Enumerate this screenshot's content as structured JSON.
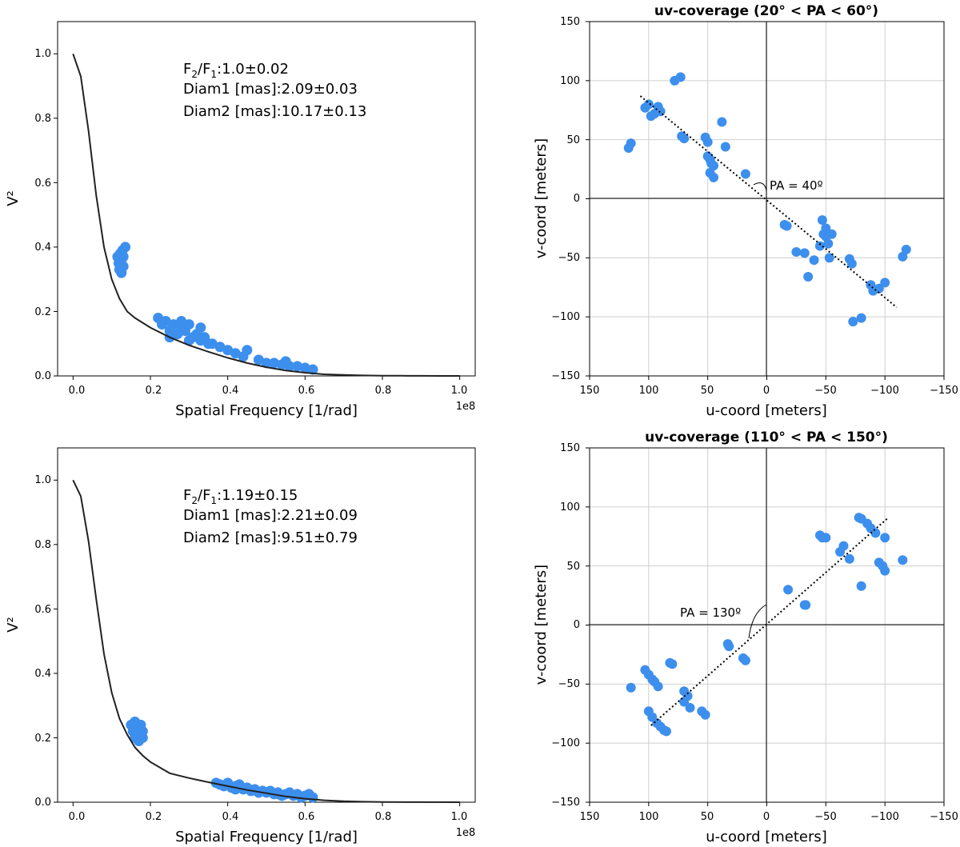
{
  "figure": {
    "marker_color": "#3d8fed",
    "curve_color": "#222222"
  },
  "chart_data": [
    {
      "type": "scatter",
      "id": "vis-top",
      "xlabel": "Spatial Frequency [1/rad]",
      "ylabel": "V²",
      "xlim": [
        -0.04,
        1.04
      ],
      "ylim": [
        0.0,
        1.1
      ],
      "xticks": [
        "0.0",
        "0.2",
        "0.4",
        "0.6",
        "0.8",
        "1.0"
      ],
      "yticks": [
        "0.0",
        "0.2",
        "0.4",
        "0.6",
        "0.8",
        "1.0"
      ],
      "offset_text": "1e8",
      "annotations": [
        {
          "lead": "F",
          "s1": "2",
          "mid": "/F",
          "s2": "1",
          "tail": ":1.0±0.02"
        },
        {
          "text": "Diam1 [mas]:2.09±0.03"
        },
        {
          "text": "Diam2 [mas]:10.17±0.13"
        }
      ],
      "model": {
        "x": [
          0,
          0.02,
          0.04,
          0.06,
          0.08,
          0.1,
          0.12,
          0.14,
          0.16,
          0.2,
          0.25,
          0.3,
          0.35,
          0.4,
          0.45,
          0.5,
          0.55,
          0.6,
          0.65,
          0.7,
          0.75,
          0.8,
          0.85,
          0.9,
          0.95,
          1.0
        ],
        "y": [
          1.0,
          0.93,
          0.76,
          0.56,
          0.4,
          0.3,
          0.24,
          0.2,
          0.18,
          0.15,
          0.12,
          0.095,
          0.075,
          0.056,
          0.04,
          0.027,
          0.017,
          0.01,
          0.005,
          0.003,
          0.0015,
          0.0008,
          0.0004,
          0.0002,
          0.0001,
          0.0
        ]
      },
      "series": [
        {
          "name": "data",
          "x": [
            0.115,
            0.118,
            0.12,
            0.122,
            0.125,
            0.125,
            0.128,
            0.13,
            0.13,
            0.135,
            0.22,
            0.23,
            0.24,
            0.25,
            0.26,
            0.27,
            0.28,
            0.29,
            0.3,
            0.31,
            0.32,
            0.33,
            0.34,
            0.36,
            0.38,
            0.4,
            0.42,
            0.44,
            0.48,
            0.5,
            0.52,
            0.54,
            0.56,
            0.58,
            0.6,
            0.62,
            0.25,
            0.3,
            0.35,
            0.28,
            0.33,
            0.45,
            0.55
          ],
          "y": [
            0.37,
            0.35,
            0.33,
            0.38,
            0.36,
            0.32,
            0.39,
            0.37,
            0.34,
            0.4,
            0.18,
            0.16,
            0.17,
            0.14,
            0.16,
            0.13,
            0.15,
            0.14,
            0.16,
            0.12,
            0.13,
            0.11,
            0.12,
            0.1,
            0.09,
            0.08,
            0.07,
            0.06,
            0.05,
            0.04,
            0.04,
            0.035,
            0.03,
            0.03,
            0.025,
            0.02,
            0.12,
            0.11,
            0.1,
            0.17,
            0.15,
            0.08,
            0.045
          ]
        }
      ]
    },
    {
      "type": "scatter",
      "id": "uv-top",
      "title": "uv-coverage (20° < PA < 60°)",
      "xlabel": "u-coord [meters]",
      "ylabel": "v-coord [meters]",
      "xlim": [
        150,
        -150
      ],
      "ylim": [
        -150,
        150
      ],
      "xticks": [
        "150",
        "100",
        "50",
        "0",
        "−50",
        "−100",
        "−150"
      ],
      "yticks": [
        "−150",
        "−100",
        "−50",
        "0",
        "50",
        "100",
        "150"
      ],
      "pa_label": "PA = 40º",
      "pa_line": [
        [
          107,
          87
        ],
        [
          -110,
          -92
        ]
      ],
      "series": [
        {
          "name": "uv",
          "x": [
            117,
            115,
            103,
            100,
            98,
            95,
            92,
            90,
            78,
            73,
            70,
            72,
            52,
            50,
            50,
            48,
            47,
            45,
            48,
            45,
            38,
            35,
            18,
            -15,
            -17,
            -25,
            -32,
            -35,
            -40,
            -47,
            -48,
            -50,
            -52,
            -53,
            -55,
            -50,
            -45,
            -70,
            -72,
            -73,
            -80,
            -88,
            -90,
            -95,
            -100,
            -118,
            -115
          ],
          "y": [
            43,
            47,
            77,
            80,
            70,
            72,
            78,
            74,
            100,
            103,
            51,
            53,
            52,
            48,
            36,
            33,
            30,
            28,
            22,
            18,
            65,
            44,
            21,
            -22,
            -23,
            -45,
            -46,
            -66,
            -52,
            -18,
            -30,
            -32,
            -38,
            -50,
            -30,
            -25,
            -40,
            -51,
            -55,
            -104,
            -101,
            -73,
            -78,
            -76,
            -71,
            -43,
            -49
          ]
        }
      ]
    },
    {
      "type": "scatter",
      "id": "vis-bottom",
      "xlabel": "Spatial Frequency [1/rad]",
      "ylabel": "V²",
      "xlim": [
        -0.04,
        1.04
      ],
      "ylim": [
        0.0,
        1.1
      ],
      "xticks": [
        "0.0",
        "0.2",
        "0.4",
        "0.6",
        "0.8",
        "1.0"
      ],
      "yticks": [
        "0.0",
        "0.2",
        "0.4",
        "0.6",
        "0.8",
        "1.0"
      ],
      "offset_text": "1e8",
      "annotations": [
        {
          "lead": "F",
          "s1": "2",
          "mid": "/F",
          "s2": "1",
          "tail": ":1.19±0.15"
        },
        {
          "text": "Diam1 [mas]:2.21±0.09"
        },
        {
          "text": "Diam2 [mas]:9.51±0.79"
        }
      ],
      "model": {
        "x": [
          0,
          0.02,
          0.04,
          0.06,
          0.08,
          0.1,
          0.12,
          0.14,
          0.16,
          0.18,
          0.2,
          0.25,
          0.3,
          0.35,
          0.4,
          0.45,
          0.5,
          0.55,
          0.6,
          0.65,
          0.7,
          0.75,
          0.8,
          0.9,
          1.0
        ],
        "y": [
          1.0,
          0.95,
          0.81,
          0.63,
          0.46,
          0.34,
          0.26,
          0.21,
          0.17,
          0.145,
          0.125,
          0.09,
          0.075,
          0.062,
          0.05,
          0.038,
          0.028,
          0.018,
          0.011,
          0.006,
          0.003,
          0.0015,
          0.0008,
          0.0002,
          0.0
        ]
      },
      "series": [
        {
          "name": "data",
          "x": [
            0.15,
            0.155,
            0.16,
            0.16,
            0.165,
            0.17,
            0.17,
            0.175,
            0.18,
            0.18,
            0.37,
            0.38,
            0.39,
            0.4,
            0.41,
            0.42,
            0.43,
            0.44,
            0.45,
            0.46,
            0.47,
            0.48,
            0.49,
            0.5,
            0.51,
            0.52,
            0.53,
            0.54,
            0.55,
            0.56,
            0.57,
            0.58,
            0.59,
            0.6,
            0.61,
            0.62,
            0.42,
            0.48,
            0.53
          ],
          "y": [
            0.24,
            0.22,
            0.25,
            0.2,
            0.23,
            0.21,
            0.19,
            0.24,
            0.22,
            0.2,
            0.06,
            0.055,
            0.05,
            0.06,
            0.045,
            0.05,
            0.055,
            0.04,
            0.045,
            0.035,
            0.04,
            0.03,
            0.035,
            0.03,
            0.035,
            0.025,
            0.03,
            0.02,
            0.025,
            0.03,
            0.02,
            0.025,
            0.015,
            0.02,
            0.025,
            0.015,
            0.04,
            0.03,
            0.025
          ]
        }
      ]
    },
    {
      "type": "scatter",
      "id": "uv-bottom",
      "title": "uv-coverage (110° < PA < 150°)",
      "xlabel": "u-coord [meters]",
      "ylabel": "v-coord [meters]",
      "xlim": [
        150,
        -150
      ],
      "ylim": [
        -150,
        150
      ],
      "xticks": [
        "150",
        "100",
        "50",
        "0",
        "−50",
        "−100",
        "−150"
      ],
      "yticks": [
        "−150",
        "−100",
        "−50",
        "0",
        "50",
        "100",
        "150"
      ],
      "pa_label": "PA = 130º",
      "pa_line": [
        [
          98,
          -85
        ],
        [
          -103,
          91
        ]
      ],
      "series": [
        {
          "name": "uv",
          "x": [
            115,
            103,
            100,
            97,
            95,
            92,
            100,
            97,
            93,
            90,
            87,
            85,
            80,
            82,
            70,
            67,
            70,
            65,
            55,
            52,
            33,
            32,
            20,
            18,
            -18,
            -32,
            -33,
            -45,
            -47,
            -50,
            -62,
            -65,
            -70,
            -78,
            -80,
            -85,
            -88,
            -92,
            -95,
            -98,
            -100,
            -100,
            -80,
            -115
          ],
          "y": [
            -53,
            -38,
            -42,
            -46,
            -48,
            -52,
            -73,
            -78,
            -83,
            -86,
            -89,
            -90,
            -33,
            -32,
            -56,
            -60,
            -65,
            -70,
            -73,
            -76,
            -16,
            -18,
            -28,
            -30,
            30,
            17,
            17,
            76,
            74,
            74,
            62,
            67,
            56,
            91,
            90,
            86,
            82,
            78,
            53,
            50,
            46,
            74,
            33,
            55
          ]
        }
      ]
    }
  ]
}
